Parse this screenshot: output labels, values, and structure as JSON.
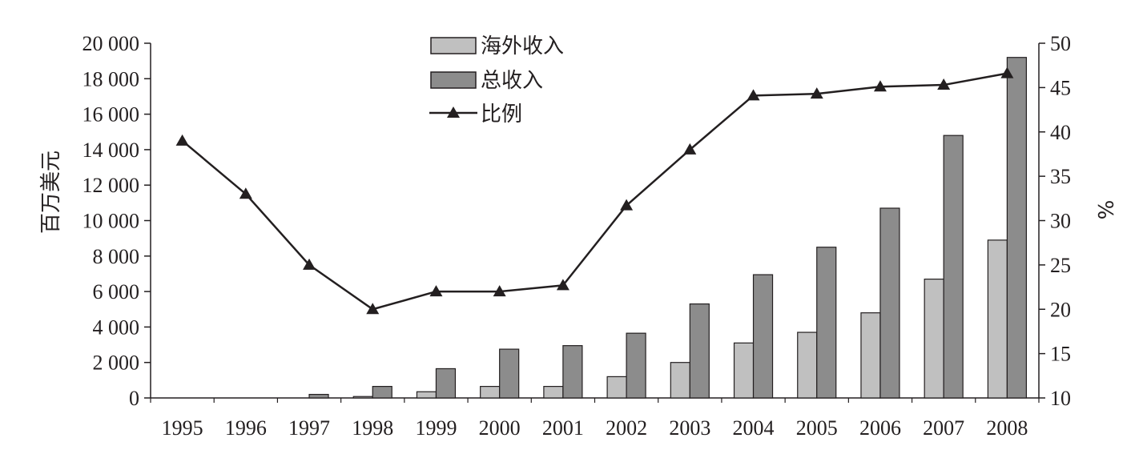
{
  "chart_data": {
    "type": "bar",
    "categories": [
      "1995",
      "1996",
      "1997",
      "1998",
      "1999",
      "2000",
      "2001",
      "2002",
      "2003",
      "2004",
      "2005",
      "2006",
      "2007",
      "2008"
    ],
    "series": [
      {
        "name": "海外收入",
        "axis": "left",
        "kind": "bar",
        "color": "#c0c0c0",
        "values": [
          0,
          0,
          0,
          80,
          350,
          650,
          650,
          1200,
          2000,
          3100,
          3700,
          4800,
          6700,
          8900
        ]
      },
      {
        "name": "总收入",
        "axis": "left",
        "kind": "bar",
        "color": "#8c8c8c",
        "values": [
          0,
          0,
          200,
          650,
          1650,
          2750,
          2950,
          3650,
          5300,
          6950,
          8500,
          10700,
          14800,
          19200
        ]
      },
      {
        "name": "比例",
        "axis": "right",
        "kind": "line",
        "marker": "triangle",
        "color": "#231f20",
        "values": [
          39,
          33,
          25,
          20,
          22,
          22,
          22.7,
          31.7,
          38,
          44.1,
          44.3,
          45.1,
          45.3,
          46.6
        ]
      }
    ],
    "ylabel": "百万美元",
    "ylabel_right": "%",
    "ylim": [
      0,
      20000
    ],
    "yticks": [
      "0",
      "2 000",
      "4 000",
      "6 000",
      "8 000",
      "10 000",
      "12 000",
      "14 000",
      "16 000",
      "18 000",
      "20 000"
    ],
    "ylim_right": [
      10,
      50
    ],
    "yticks_right": [
      "10",
      "15",
      "20",
      "25",
      "30",
      "35",
      "40",
      "45",
      "50"
    ],
    "grid": false,
    "legend_position": "top-center"
  }
}
